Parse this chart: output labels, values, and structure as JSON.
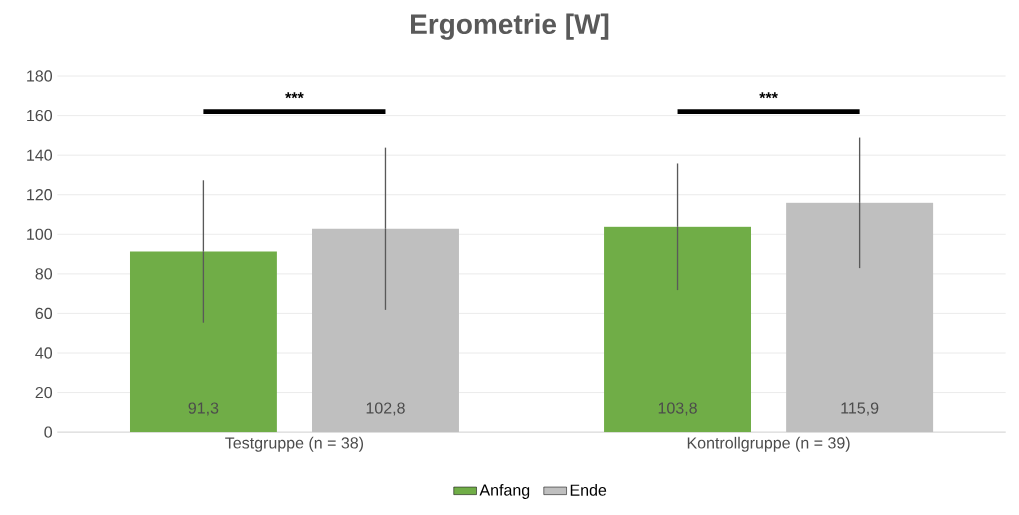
{
  "chart_data": {
    "type": "bar",
    "title": "Ergometrie [W]",
    "categories": [
      "Testgruppe (n = 38)",
      "Kontrollgruppe (n = 39)"
    ],
    "series": [
      {
        "name": "Anfang",
        "color": "#70ad47",
        "values": [
          91.3,
          103.8
        ],
        "errors": [
          36,
          32
        ],
        "value_labels": [
          "91,3",
          "103,8"
        ]
      },
      {
        "name": "Ende",
        "color": "#bfbfbf",
        "values": [
          102.8,
          115.9
        ],
        "errors": [
          41,
          33
        ],
        "value_labels": [
          "102,8",
          "115,9"
        ]
      }
    ],
    "ylim": [
      0,
      180
    ],
    "yticks": [
      0,
      20,
      40,
      60,
      80,
      100,
      120,
      140,
      160,
      180
    ],
    "grid": "y",
    "legend": "bottom",
    "annotations": [
      "***",
      "***"
    ]
  }
}
